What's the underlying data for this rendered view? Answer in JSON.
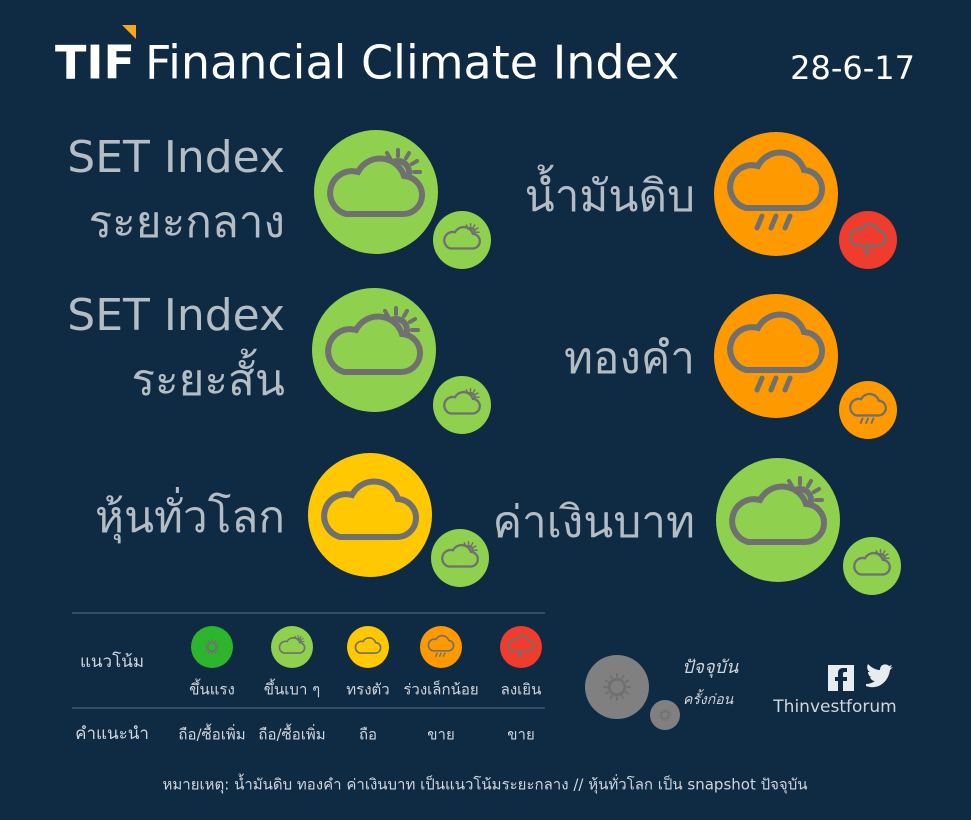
{
  "header": {
    "logo": "TIF",
    "title": "Financial Climate Index",
    "date": "28-6-17"
  },
  "items": [
    {
      "label": [
        "SET Index",
        "ระยะกลาง"
      ],
      "current": "#8fd14f",
      "previous": "#8fd14f"
    },
    {
      "label": [
        "น้ำมันดิบ"
      ],
      "current": "#ff9900",
      "previous": "#f03c2c"
    },
    {
      "label": [
        "SET Index",
        "ระยะสั้น"
      ],
      "current": "#8fd14f",
      "previous": "#8fd14f"
    },
    {
      "label": [
        "ทองคำ"
      ],
      "current": "#ff9900",
      "previous": "#ff9900"
    },
    {
      "label": [
        "หุ้นทั่วโลก"
      ],
      "current": "#ffc800",
      "previous": "#8fd14f"
    },
    {
      "label": [
        "ค่าเงินบาท"
      ],
      "current": "#8fd14f",
      "previous": "#8fd14f"
    }
  ],
  "legend": {
    "trend_heading": "แนวโน้ม",
    "advice_heading": "คำแนะนำ",
    "levels": [
      {
        "label": "ขึ้นแรง",
        "advice": "ถือ/ซื้อเพิ่ม",
        "color": "#2db52d"
      },
      {
        "label": "ขึ้นเบา ๆ",
        "advice": "ถือ/ซื้อเพิ่ม",
        "color": "#8fd14f"
      },
      {
        "label": "ทรงตัว",
        "advice": "ถือ",
        "color": "#ffc800"
      },
      {
        "label": "ร่วงเล็กน้อย",
        "advice": "ขาย",
        "color": "#ff9900"
      },
      {
        "label": "ลงเยิน",
        "advice": "ขาย",
        "color": "#f03c2c"
      }
    ]
  },
  "key": {
    "current": "ปัจจุบัน",
    "previous": "ครั้งก่อน"
  },
  "brand": "Thinvestforum",
  "footnote": "หมายเหตุ: น้ำมันดิบ ทองคำ ค่าเงินบาท เป็นแนวโน้มระยะกลาง // หุ้นทั่วโลก เป็น snapshot ปัจจุบัน"
}
